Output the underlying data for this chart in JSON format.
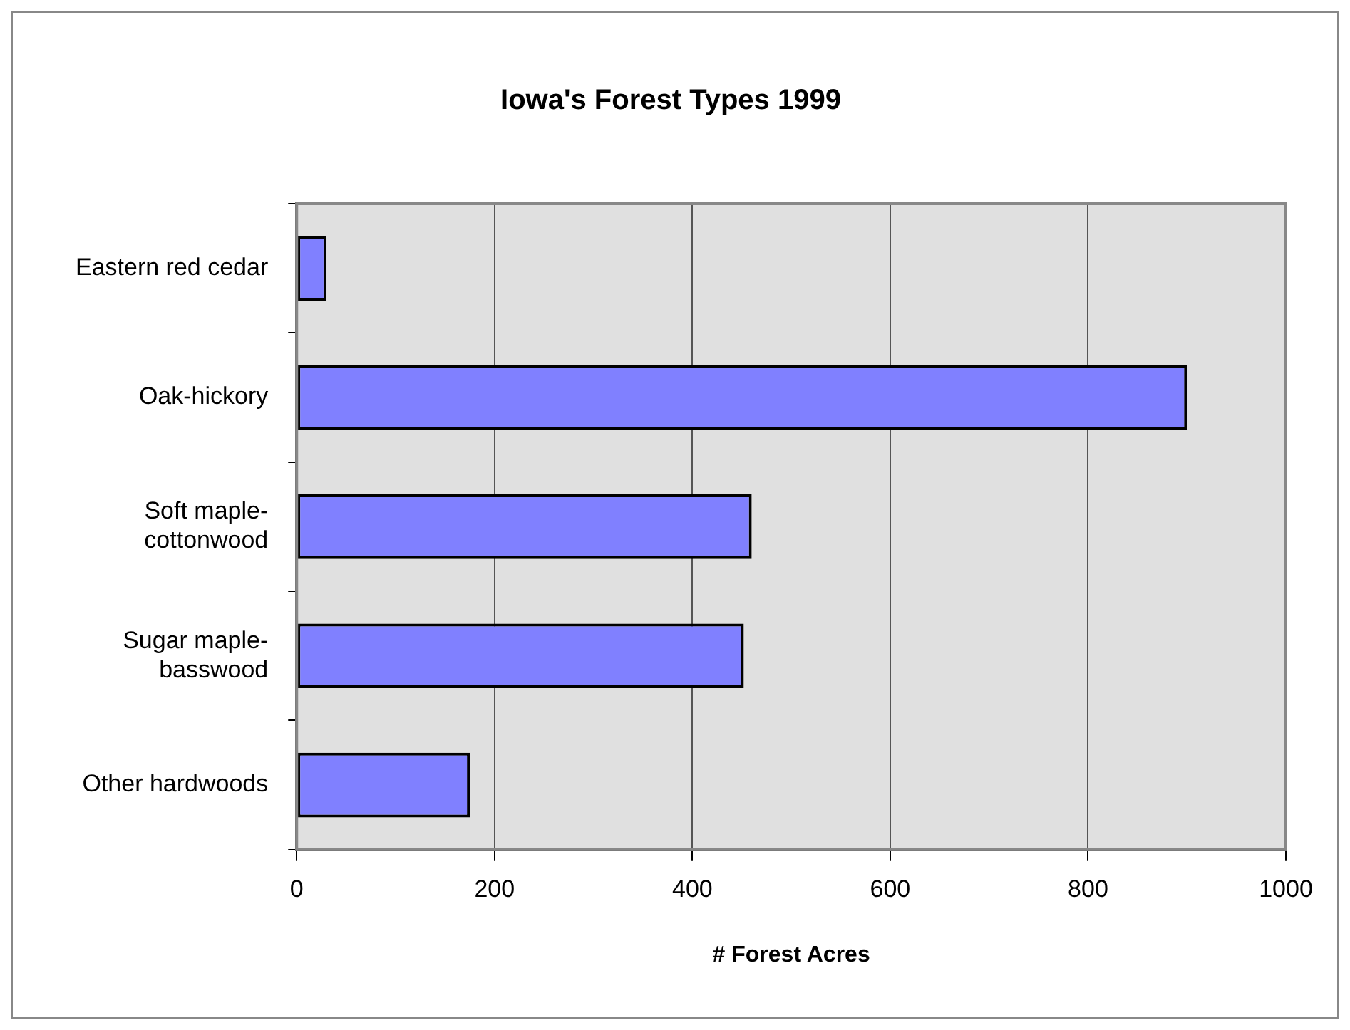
{
  "chart_data": {
    "type": "bar",
    "orientation": "horizontal",
    "title": "Iowa's Forest Types 1999",
    "xlabel": "# Forest Acres",
    "categories": [
      "Eastern red cedar",
      "Oak-hickory",
      "Soft maple-cottonwood",
      "Sugar maple-basswood",
      "Other hardwoods"
    ],
    "values": [
      30,
      900,
      460,
      452,
      175
    ],
    "color": "#8080ff",
    "xlim": [
      0,
      1000
    ],
    "xticks": [
      0,
      200,
      400,
      600,
      800,
      1000
    ],
    "grid": "x",
    "legend": false
  }
}
